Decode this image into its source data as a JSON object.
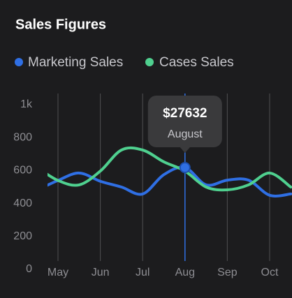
{
  "chart_data": {
    "type": "line",
    "title": "Sales Figures",
    "categories": [
      null,
      "May",
      null,
      "Jun",
      null,
      "Jul",
      null,
      "Aug",
      null,
      "Sep",
      null,
      "Oct",
      null
    ],
    "series": [
      {
        "name": "Marketing Sales",
        "color": "#2f6fe4",
        "values": [
          480,
          540,
          585,
          535,
          500,
          458,
          575,
          618,
          513,
          542,
          542,
          450,
          458
        ]
      },
      {
        "name": "Cases Sales",
        "color": "#4fd08f",
        "values": [
          620,
          540,
          513,
          597,
          725,
          725,
          653,
          597,
          500,
          483,
          513,
          585,
          500
        ]
      }
    ],
    "ylim": [
      0,
      1000
    ],
    "yticks": [
      0,
      200,
      400,
      600,
      800,
      {
        "value": 1000,
        "label": "1k"
      }
    ],
    "grid": "vertical",
    "smooth": true,
    "tooltip": {
      "title": "$27632",
      "subtitle": "August"
    }
  }
}
